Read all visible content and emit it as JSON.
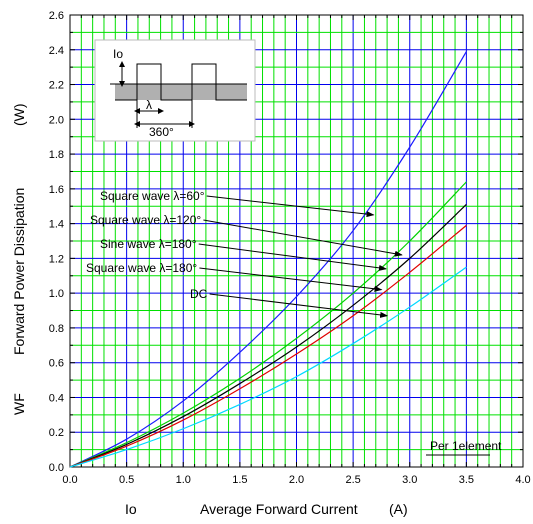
{
  "chart_data": {
    "type": "line",
    "xlabel_symbol": "Io",
    "xlabel": "Average Forward Current",
    "xlabel_unit": "(A)",
    "ylabel_symbol": "WF",
    "ylabel": "Forward Power Dissipation",
    "ylabel_unit": "(W)",
    "xlim": [
      0,
      4.0
    ],
    "ylim": [
      0,
      2.6
    ],
    "x_ticks": [
      "0.0",
      "0.5",
      "1.0",
      "1.5",
      "2.0",
      "2.5",
      "3.0",
      "3.5",
      "4.0"
    ],
    "y_ticks": [
      "0.0",
      "0.2",
      "0.4",
      "0.6",
      "0.8",
      "1.0",
      "1.2",
      "1.4",
      "1.6",
      "1.8",
      "2.0",
      "2.2",
      "2.4",
      "2.6"
    ],
    "grid": true,
    "series": [
      {
        "name": "Square wave λ=60°",
        "color": "#1a1aff",
        "x": [
          0,
          0.5,
          1.0,
          1.5,
          2.0,
          2.5,
          3.0,
          3.5
        ],
        "y": [
          0,
          0.16,
          0.38,
          0.66,
          0.98,
          1.36,
          1.84,
          2.39
        ]
      },
      {
        "name": "Square wave λ=120°",
        "color": "#00d000",
        "x": [
          0,
          0.5,
          1.0,
          1.5,
          2.0,
          2.5,
          3.0,
          3.5
        ],
        "y": [
          0,
          0.14,
          0.31,
          0.51,
          0.74,
          1.0,
          1.3,
          1.64
        ]
      },
      {
        "name": "Sine wave λ=180°",
        "color": "#000000",
        "x": [
          0,
          0.5,
          1.0,
          1.5,
          2.0,
          2.5,
          3.0,
          3.5
        ],
        "y": [
          0,
          0.13,
          0.29,
          0.48,
          0.69,
          0.93,
          1.2,
          1.51
        ]
      },
      {
        "name": "Square wave λ=180°",
        "color": "#e00000",
        "x": [
          0,
          0.5,
          1.0,
          1.5,
          2.0,
          2.5,
          3.0,
          3.5
        ],
        "y": [
          0,
          0.12,
          0.27,
          0.45,
          0.65,
          0.87,
          1.12,
          1.39
        ]
      },
      {
        "name": "DC",
        "color": "#00d8ff",
        "x": [
          0,
          0.5,
          1.0,
          1.5,
          2.0,
          2.5,
          3.0,
          3.5
        ],
        "y": [
          0,
          0.1,
          0.22,
          0.36,
          0.52,
          0.71,
          0.92,
          1.15
        ]
      }
    ],
    "annotations": [
      {
        "label": "Square wave  λ=60°",
        "target_series": 0,
        "x": 2.7,
        "y": 1.61,
        "target_x": 2.68,
        "target_y": 1.45
      },
      {
        "label": "Square wave  λ=120°",
        "target_series": 1,
        "x": 2.7,
        "y": 1.45,
        "target_x": 2.93,
        "target_y": 1.22
      },
      {
        "label": "Sine wave  λ=180°",
        "target_series": 2,
        "x": 2.7,
        "y": 1.28,
        "target_x": 2.79,
        "target_y": 1.14
      },
      {
        "label": "Square wave  λ=180°",
        "target_series": 3,
        "x": 2.7,
        "y": 1.13,
        "target_x": 2.75,
        "target_y": 1.02
      },
      {
        "label": "DC",
        "target_series": 4,
        "x": 2.7,
        "y": 0.95,
        "target_x": 2.8,
        "target_y": 0.87
      }
    ],
    "note": "Per 1element",
    "inset": {
      "io_label": "Io",
      "lambda_label": "λ",
      "period_label": "360°"
    }
  }
}
